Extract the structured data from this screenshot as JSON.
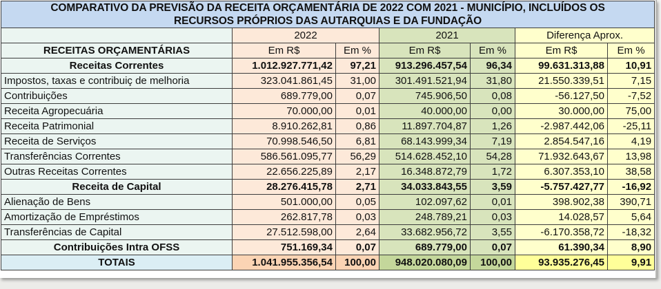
{
  "title": {
    "line1": "COMPARATIVO DA PREVISÃO DA RECEITA ORÇAMENTÁRIA DE 2022 COM  2021 - MUNICÍPIO, INCLUÍDOS OS",
    "line2": "RECURSOS PRÓPRIOS DAS AUTARQUIAS E DA FUNDAÇÃO"
  },
  "groups": {
    "y2022": "2022",
    "y2021": "2021",
    "diff": "Diferença Aprox."
  },
  "columns": {
    "label": "RECEITAS ORÇAMENTÁRIAS",
    "rs": "Em R$",
    "pct": "Em %"
  },
  "colors": {
    "title_bg": "#c5d9f1",
    "label_bg": "#ebf5f1",
    "y2022_bg": "#fde9d9",
    "y2021_bg": "#d8e4bc",
    "diff_bg": "#ffffcc",
    "total_diff_bg": "#ffff99"
  },
  "rows": [
    {
      "label": "Receitas Correntes",
      "v2022": "1.012.927.771,42",
      "p2022": "97,21",
      "v2021": "913.296.457,54",
      "p2021": "96,34",
      "vdiff": "99.631.313,88",
      "pdiff": "10,91",
      "bold": true
    },
    {
      "label": "Impostos, taxas e contribuiç de melhoria",
      "v2022": "323.041.861,45",
      "p2022": "31,00",
      "v2021": "301.491.521,94",
      "p2021": "31,80",
      "vdiff": "21.550.339,51",
      "pdiff": "7,15"
    },
    {
      "label": "Contribuições",
      "v2022": "689.779,00",
      "p2022": "0,07",
      "v2021": "745.906,50",
      "p2021": "0,08",
      "vdiff": "-56.127,50",
      "pdiff": "-7,52"
    },
    {
      "label": "Receita Agropecuária",
      "v2022": "70.000,00",
      "p2022": "0,01",
      "v2021": "40.000,00",
      "p2021": "0,00",
      "vdiff": "30.000,00",
      "pdiff": "75,00"
    },
    {
      "label": "Receita Patrimonial",
      "v2022": "8.910.262,81",
      "p2022": "0,86",
      "v2021": "11.897.704,87",
      "p2021": "1,26",
      "vdiff": "-2.987.442,06",
      "pdiff": "-25,11"
    },
    {
      "label": "Receita de Serviços",
      "v2022": "70.998.546,50",
      "p2022": "6,81",
      "v2021": "68.143.999,34",
      "p2021": "7,19",
      "vdiff": "2.854.547,16",
      "pdiff": "4,19"
    },
    {
      "label": "Transferências Correntes",
      "v2022": "586.561.095,77",
      "p2022": "56,29",
      "v2021": "514.628.452,10",
      "p2021": "54,28",
      "vdiff": "71.932.643,67",
      "pdiff": "13,98"
    },
    {
      "label": "Outras Receitas Correntes",
      "v2022": "22.656.225,89",
      "p2022": "2,17",
      "v2021": "16.348.872,79",
      "p2021": "1,72",
      "vdiff": "6.307.353,10",
      "pdiff": "38,58"
    },
    {
      "label": "Receita de Capital",
      "v2022": "28.276.415,78",
      "p2022": "2,71",
      "v2021": "34.033.843,55",
      "p2021": "3,59",
      "vdiff": "-5.757.427,77",
      "pdiff": "-16,92",
      "bold": true
    },
    {
      "label": "Alienação de Bens",
      "v2022": "501.000,00",
      "p2022": "0,05",
      "v2021": "102.097,62",
      "p2021": "0,01",
      "vdiff": "398.902,38",
      "pdiff": "390,71"
    },
    {
      "label": "Amortização de Empréstimos",
      "v2022": "262.817,78",
      "p2022": "0,03",
      "v2021": "248.789,21",
      "p2021": "0,03",
      "vdiff": "14.028,57",
      "pdiff": "5,64"
    },
    {
      "label": "Transferências de Capital",
      "v2022": "27.512.598,00",
      "p2022": "2,64",
      "v2021": "33.682.956,72",
      "p2021": "3,55",
      "vdiff": "-6.170.358,72",
      "pdiff": "-18,32"
    },
    {
      "label": "Contribuições Intra OFSS",
      "v2022": "751.169,34",
      "p2022": "0,07",
      "v2021": "689.779,00",
      "p2021": "0,07",
      "vdiff": "61.390,34",
      "pdiff": "8,90",
      "bold": true
    }
  ],
  "totals": {
    "label": "TOTAIS",
    "v2022": "1.041.955.356,54",
    "p2022": "100,00",
    "v2021": "948.020.080,09",
    "p2021": "100,00",
    "vdiff": "93.935.276,45",
    "pdiff": "9,91"
  }
}
